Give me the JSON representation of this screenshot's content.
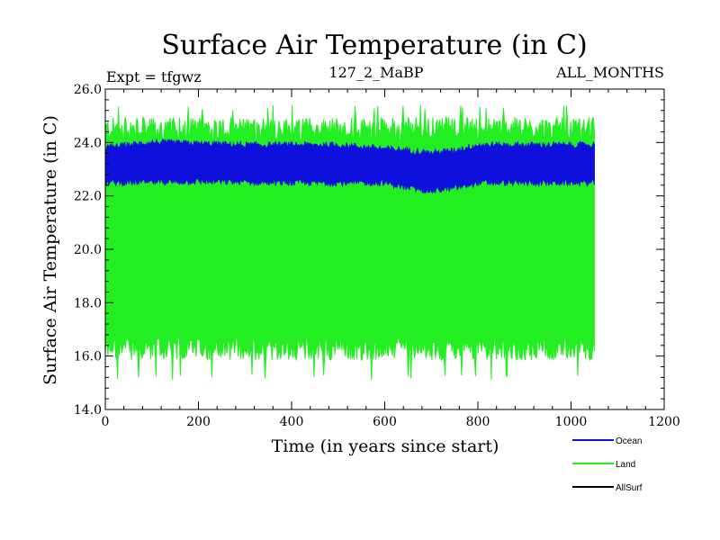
{
  "chart_data": {
    "type": "line",
    "title": "Surface Air Temperature (in C)",
    "subtitle_left": "Expt = tfgwz",
    "subtitle_center": "127_2_MaBP",
    "subtitle_right": "ALL_MONTHS",
    "xlabel": "Time (in years since start)",
    "ylabel": "Surface Air Temperature (in C)",
    "xlim": [
      0,
      1200
    ],
    "ylim": [
      14,
      26
    ],
    "x_ticks": [
      0,
      200,
      400,
      600,
      800,
      1000,
      1200
    ],
    "x_tick_labels": [
      "0",
      "200",
      "400",
      "600",
      "800",
      "1000",
      "1200"
    ],
    "y_ticks": [
      14,
      16,
      18,
      20,
      22,
      24,
      26
    ],
    "y_tick_labels": [
      "14.0",
      "16.0",
      "18.0",
      "20.0",
      "22.0",
      "24.0",
      "26.0"
    ],
    "x_minor_step": 40,
    "y_minor_step": 0.4,
    "legend_position": "bottom-right",
    "series": [
      {
        "name": "Land",
        "color": "#22ee22",
        "x_range": [
          0,
          1050
        ],
        "mean_low": 16.3,
        "mean_high": 24.5,
        "min_excursion": 15.1,
        "max_excursion": 25.4,
        "note": "annual-cycle envelope of monthly values"
      },
      {
        "name": "Ocean",
        "color": "#1010dd",
        "x_range": [
          0,
          1050
        ],
        "envelope_low": [
          [
            0,
            22.5
          ],
          [
            200,
            22.55
          ],
          [
            400,
            22.5
          ],
          [
            600,
            22.5
          ],
          [
            650,
            22.3
          ],
          [
            700,
            22.2
          ],
          [
            750,
            22.3
          ],
          [
            800,
            22.5
          ],
          [
            1000,
            22.5
          ],
          [
            1050,
            22.5
          ]
        ],
        "envelope_high": [
          [
            0,
            23.8
          ],
          [
            100,
            24.0
          ],
          [
            300,
            23.9
          ],
          [
            500,
            23.9
          ],
          [
            650,
            23.7
          ],
          [
            700,
            23.6
          ],
          [
            750,
            23.7
          ],
          [
            800,
            23.9
          ],
          [
            1000,
            23.9
          ],
          [
            1050,
            23.9
          ]
        ]
      },
      {
        "name": "AllSurf",
        "color": "#000000",
        "x_range": [
          0,
          1050
        ]
      }
    ]
  }
}
